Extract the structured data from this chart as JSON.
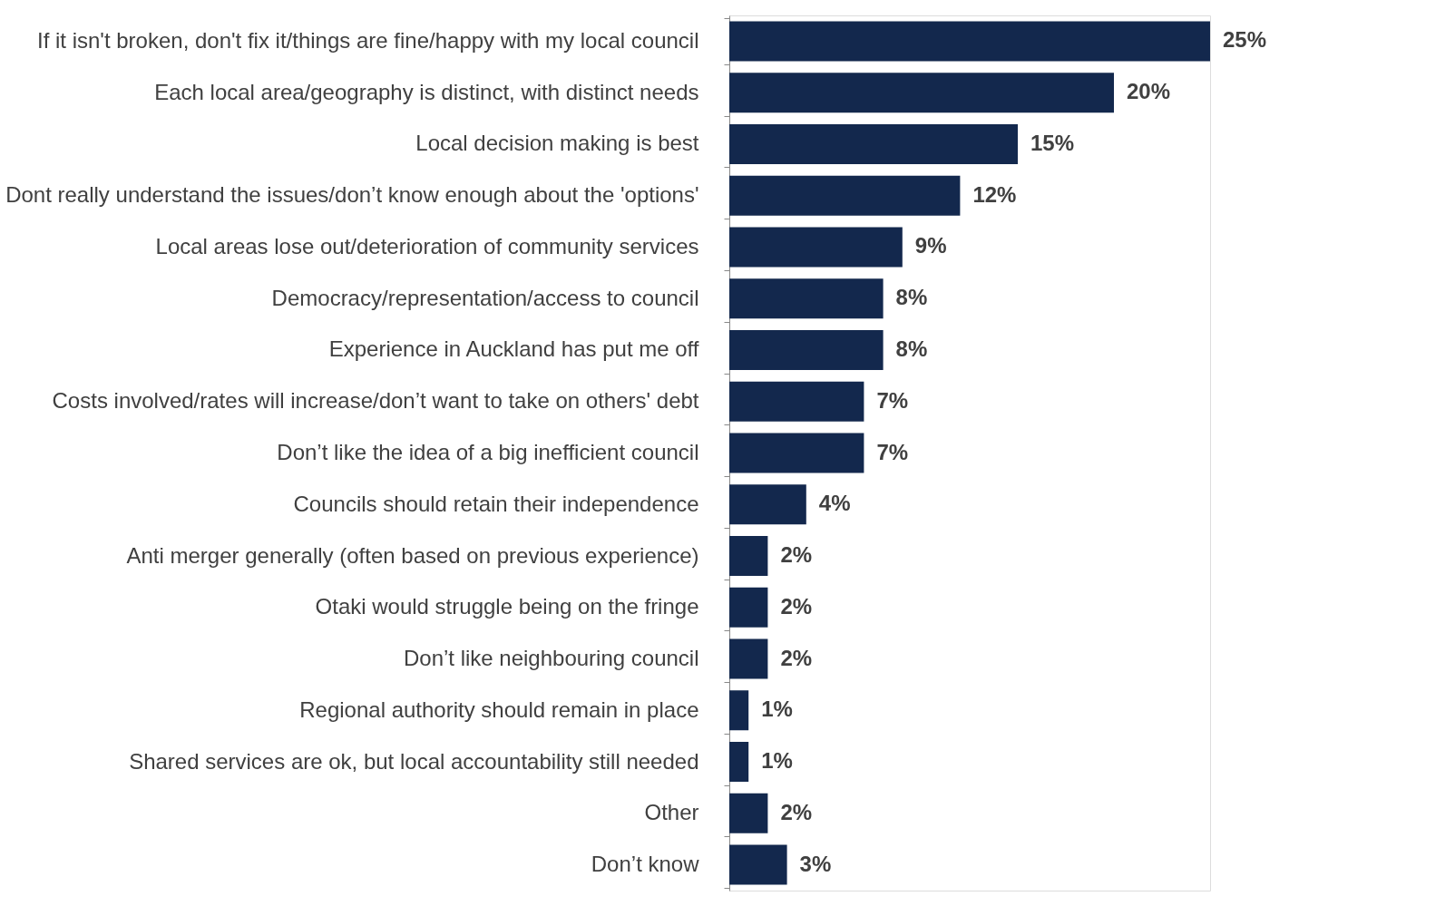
{
  "chart_data": {
    "type": "bar",
    "orientation": "horizontal",
    "color": "#13284d",
    "categories": [
      "If it isn't broken, don't fix it/things are fine/happy with my local council",
      "Each local area/geography is distinct, with distinct needs",
      "Local decision making is best",
      "Dont really understand the issues/don’t know enough about the 'options'",
      "Local areas lose out/deterioration of community services",
      "Democracy/representation/access to council",
      "Experience in Auckland has put me off",
      "Costs involved/rates will increase/don’t want to take on others' debt",
      "Don’t like the idea of a big inefficient council",
      "Councils should retain their independence",
      "Anti merger generally (often based on previous experience)",
      "Otaki would struggle being on the fringe",
      "Don’t like neighbouring council",
      "Regional authority should remain in place",
      "Shared services are ok, but local accountability still needed",
      "Other",
      "Don’t know"
    ],
    "values": [
      25,
      20,
      15,
      12,
      9,
      8,
      8,
      7,
      7,
      4,
      2,
      2,
      2,
      1,
      1,
      2,
      3
    ],
    "value_labels": [
      "25%",
      "20%",
      "15%",
      "12%",
      "9%",
      "8%",
      "8%",
      "7%",
      "7%",
      "4%",
      "2%",
      "2%",
      "2%",
      "1%",
      "1%",
      "2%",
      "3%"
    ]
  }
}
